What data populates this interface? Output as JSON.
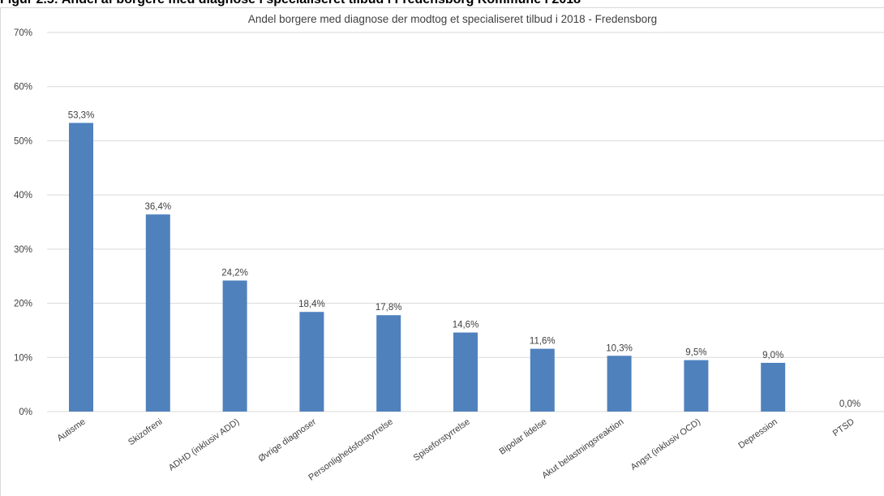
{
  "figure": {
    "caption": "Figur 2.5: Andel af borgere med diagnose i specialiseret tilbud i Fredensborg Kommune i 2018"
  },
  "chart_data": {
    "type": "bar",
    "title": "Andel borgere med diagnose der modtog et specialiseret tilbud i 2018  - Fredensborg",
    "xlabel": "",
    "ylabel": "",
    "ylim": [
      0,
      70
    ],
    "yticks": [
      "0%",
      "10%",
      "20%",
      "30%",
      "40%",
      "50%",
      "60%",
      "70%"
    ],
    "grid": true,
    "categories": [
      "Autisme",
      "Skizofreni",
      "ADHD (inklusiv ADD)",
      "Øvrige diagnoser",
      "Personlighedsforstyrrelse",
      "Spiseforstyrrelse",
      "Bipolar lidelse",
      "Akut belastningsreaktion",
      "Angst (inklusiv OCD)",
      "Depression",
      "PTSD"
    ],
    "values": [
      53.3,
      36.4,
      24.2,
      18.4,
      17.8,
      14.6,
      11.6,
      10.3,
      9.5,
      9.0,
      0.0
    ],
    "data_labels": [
      "53,3%",
      "36,4%",
      "24,2%",
      "18,4%",
      "17,8%",
      "14,6%",
      "11,6%",
      "10,3%",
      "9,5%",
      "9,0%",
      "0,0%"
    ],
    "colors": {
      "bar": "#4f81bd",
      "grid": "#d9d9d9",
      "text": "#404040"
    }
  }
}
